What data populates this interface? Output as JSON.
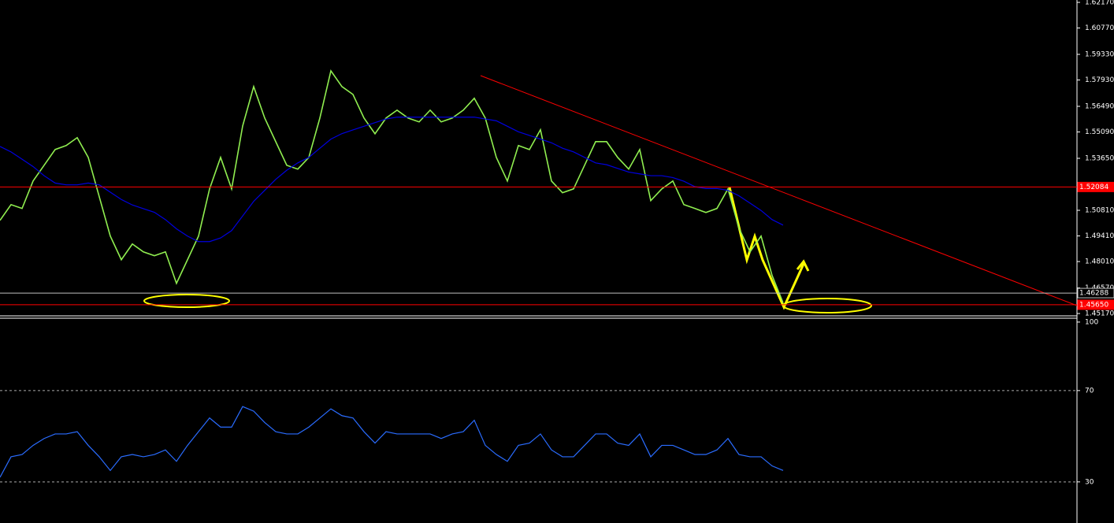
{
  "chart_data": [
    {
      "type": "line",
      "ylim": [
        1.45,
        1.623
      ],
      "yticks": [
        {
          "value": 1.6217,
          "label": "1.62170"
        },
        {
          "value": 1.6077,
          "label": "1.60770"
        },
        {
          "value": 1.5933,
          "label": "1.59330"
        },
        {
          "value": 1.5793,
          "label": "1.57930"
        },
        {
          "value": 1.5649,
          "label": "1.56490"
        },
        {
          "value": 1.5509,
          "label": "1.55090"
        },
        {
          "value": 1.5365,
          "label": "1.53650"
        },
        {
          "value": 1.5081,
          "label": "1.50810"
        },
        {
          "value": 1.4941,
          "label": "1.49410"
        },
        {
          "value": 1.4801,
          "label": "1.48010"
        },
        {
          "value": 1.4657,
          "label": "1.46570"
        },
        {
          "value": 1.4517,
          "label": "1.45170"
        }
      ],
      "levels": [
        {
          "value": 1.52084,
          "label": "1.52084",
          "color": "#ff0000"
        },
        {
          "value": 1.46288,
          "label": "1.46288",
          "color": "#c0c0c0"
        },
        {
          "value": 1.4565,
          "label": "1.45650",
          "color": "#ff0000"
        }
      ],
      "series": [
        {
          "color": "#90ee50",
          "values": [
            1.5026,
            1.5112,
            1.5091,
            1.5241,
            1.5327,
            1.5413,
            1.5435,
            1.5478,
            1.537,
            1.5155,
            1.494,
            1.4811,
            1.4897,
            1.4854,
            1.4833,
            1.4854,
            1.4682,
            1.4811,
            1.494,
            1.5198,
            1.537,
            1.5198,
            1.5542,
            1.5757,
            1.5585,
            1.5456,
            1.5327,
            1.5306,
            1.537,
            1.5585,
            1.5843,
            1.5757,
            1.5714,
            1.5585,
            1.5499,
            1.5585,
            1.5628,
            1.5585,
            1.5564,
            1.5628,
            1.5564,
            1.5585,
            1.5628,
            1.5693,
            1.5585,
            1.537,
            1.5241,
            1.5435,
            1.5413,
            1.5521,
            1.5241,
            1.5177,
            1.5198,
            1.5327,
            1.5456,
            1.5456,
            1.537,
            1.5306,
            1.5413,
            1.5134,
            1.5198,
            1.5241,
            1.5112,
            1.5091,
            1.5069,
            1.5091,
            1.5198,
            1.4983,
            1.4854,
            1.494,
            1.4725,
            1.4575
          ]
        },
        {
          "color": "#0000e0",
          "values": [
            1.543,
            1.54,
            1.536,
            1.532,
            1.527,
            1.523,
            1.522,
            1.522,
            1.523,
            1.522,
            1.518,
            1.514,
            1.511,
            1.509,
            1.507,
            1.503,
            1.498,
            1.494,
            1.491,
            1.491,
            1.493,
            1.497,
            1.505,
            1.513,
            1.519,
            1.525,
            1.53,
            1.534,
            1.537,
            1.542,
            1.547,
            1.55,
            1.552,
            1.554,
            1.556,
            1.558,
            1.559,
            1.559,
            1.559,
            1.559,
            1.559,
            1.559,
            1.559,
            1.559,
            1.558,
            1.557,
            1.554,
            1.551,
            1.549,
            1.547,
            1.545,
            1.542,
            1.54,
            1.537,
            1.534,
            1.533,
            1.531,
            1.529,
            1.528,
            1.527,
            1.527,
            1.526,
            1.524,
            1.521,
            1.52,
            1.52,
            1.519,
            1.516,
            1.512,
            1.508,
            1.503,
            1.5
          ]
        }
      ]
    },
    {
      "type": "line",
      "ylim": [
        12,
        101
      ],
      "yticks": [
        100,
        70,
        30
      ],
      "series": [
        {
          "color": "#2a6cff",
          "values": [
            32,
            41,
            42,
            46,
            49,
            51,
            51,
            52,
            46,
            41,
            35,
            41,
            42,
            41,
            42,
            44,
            39,
            46,
            52,
            58,
            54,
            54,
            63,
            61,
            56,
            52,
            51,
            51,
            54,
            58,
            62,
            59,
            58,
            52,
            47,
            52,
            51,
            51,
            51,
            51,
            49,
            51,
            52,
            57,
            46,
            42,
            39,
            46,
            47,
            51,
            44,
            41,
            41,
            46,
            51,
            51,
            47,
            46,
            51,
            41,
            46,
            46,
            44,
            42,
            42,
            44,
            49,
            42,
            41,
            41,
            37,
            35
          ]
        }
      ]
    }
  ]
}
